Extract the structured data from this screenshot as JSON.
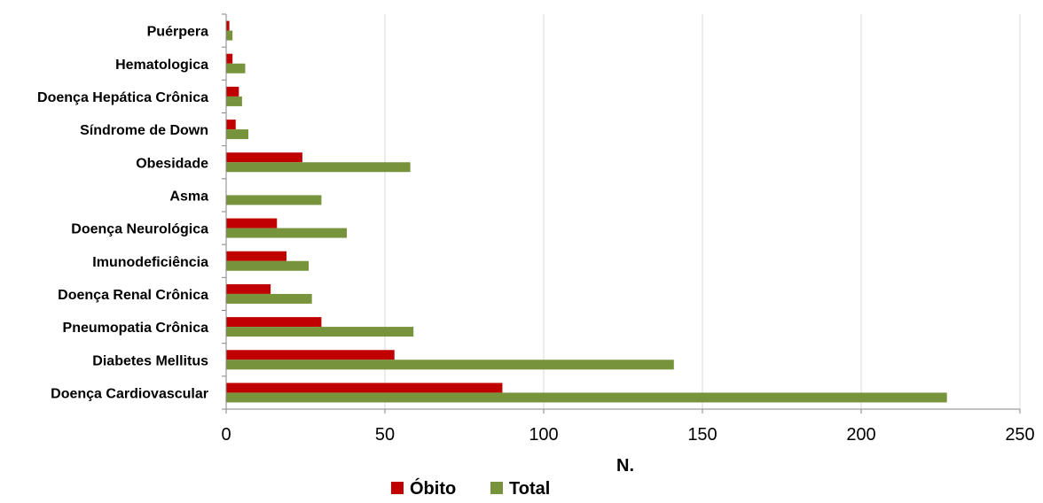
{
  "chart_data": {
    "type": "bar",
    "orientation": "horizontal",
    "categories": [
      "Doença Cardiovascular",
      "Diabetes Mellitus",
      "Pneumopatia Crônica",
      "Doença Renal Crônica",
      "Imunodeficiência",
      "Doença Neurológica",
      "Asma",
      "Obesidade",
      "Síndrome de Down",
      "Doença Hepática Crônica",
      "Hematologica",
      "Puérpera"
    ],
    "series": [
      {
        "name": "Óbito",
        "color": "#c00000",
        "values": [
          87,
          53,
          30,
          14,
          19,
          16,
          0,
          24,
          3,
          4,
          2,
          1
        ]
      },
      {
        "name": "Total",
        "color": "#77933c",
        "values": [
          227,
          141,
          59,
          27,
          26,
          38,
          30,
          58,
          7,
          5,
          6,
          2
        ]
      }
    ],
    "xlabel": "N.",
    "ylabel": "",
    "xlim": [
      0,
      250
    ],
    "xticks": [
      0,
      50,
      100,
      150,
      200,
      250
    ],
    "grid": "vertical",
    "legend": "bottom"
  }
}
